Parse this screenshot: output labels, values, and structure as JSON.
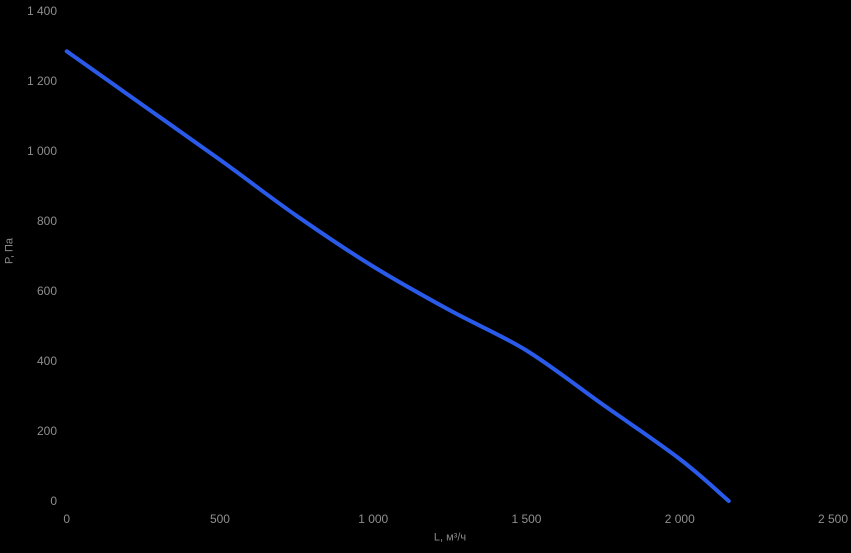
{
  "chart_data": {
    "type": "line",
    "title": "",
    "xlabel": "L, м³/ч",
    "ylabel": "P, Па",
    "xlim": [
      0,
      2500
    ],
    "ylim": [
      0,
      1400
    ],
    "x_ticks": [
      0,
      500,
      1000,
      1500,
      2000,
      2500
    ],
    "x_tick_labels": [
      "0",
      "500",
      "1 000",
      "1 500",
      "2 000",
      "2 500"
    ],
    "y_ticks": [
      0,
      200,
      400,
      600,
      800,
      1000,
      1200,
      1400
    ],
    "y_tick_labels": [
      "0",
      "200",
      "400",
      "600",
      "800",
      "1 000",
      "1 200",
      "1 400"
    ],
    "grid": false,
    "legend": false,
    "series": [
      {
        "name": "pressure-vs-flow-curve",
        "color": "#2A5AEA",
        "stroke_width": 4,
        "smooth": true,
        "points": [
          [
            0,
            1285
          ],
          [
            250,
            1130
          ],
          [
            500,
            975
          ],
          [
            750,
            815
          ],
          [
            1000,
            670
          ],
          [
            1250,
            545
          ],
          [
            1500,
            430
          ],
          [
            1750,
            275
          ],
          [
            2000,
            120
          ],
          [
            2160,
            0
          ]
        ]
      }
    ]
  },
  "colors": {
    "background": "#000000",
    "tick_label": "#8f8f8f",
    "axis_title": "#8a8a8a"
  }
}
